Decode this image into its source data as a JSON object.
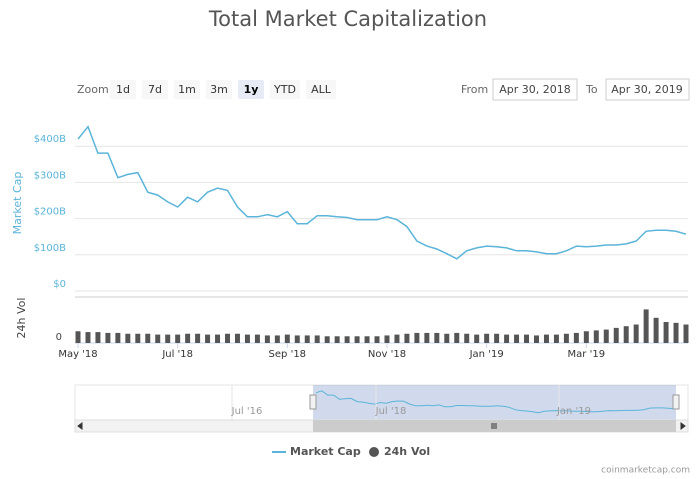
{
  "chart_data": {
    "type": "line",
    "title": "Total Market Capitalization",
    "categories": [
      "May '18",
      null,
      null,
      null,
      null,
      null,
      null,
      null,
      null,
      null,
      "Jul '18",
      null,
      null,
      null,
      null,
      null,
      null,
      null,
      null,
      null,
      null,
      "Sep '18",
      null,
      null,
      null,
      null,
      null,
      null,
      null,
      null,
      null,
      "Nov '18",
      null,
      null,
      null,
      null,
      null,
      null,
      null,
      null,
      null,
      "Jan '19",
      null,
      null,
      null,
      null,
      null,
      null,
      null,
      null,
      null,
      "Mar '19",
      null,
      null,
      null,
      null,
      null,
      null,
      null,
      null,
      null,
      null
    ],
    "series": [
      {
        "name": "Market Cap",
        "color": "#5bb4d9",
        "values": [
          420,
          454,
          381,
          381,
          313,
          322,
          327,
          273,
          265,
          246,
          232,
          259,
          246,
          273,
          284,
          278,
          232,
          205,
          205,
          211,
          205,
          219,
          186,
          186,
          208,
          208,
          205,
          203,
          197,
          197,
          197,
          205,
          197,
          178,
          138,
          124,
          116,
          103,
          89,
          111,
          119,
          124,
          122,
          119,
          111,
          111,
          108,
          103,
          103,
          111,
          124,
          122,
          124,
          127,
          127,
          130,
          138,
          165,
          168,
          168,
          165,
          157
        ]
      },
      {
        "name": "24h Vol",
        "color": "#555555",
        "type": "column",
        "values": [
          14,
          13,
          13,
          12,
          12,
          11,
          11,
          11,
          10,
          10,
          10,
          11,
          11,
          10,
          10,
          11,
          11,
          10,
          10,
          9,
          9,
          10,
          9,
          9,
          9,
          8,
          8,
          8,
          8,
          8,
          8,
          9,
          10,
          11,
          12,
          12,
          12,
          11,
          12,
          11,
          10,
          11,
          11,
          10,
          10,
          10,
          9,
          10,
          10,
          11,
          12,
          14,
          15,
          16,
          18,
          20,
          22,
          40,
          30,
          25,
          24,
          22
        ]
      }
    ],
    "yaxis_title": "Market Cap",
    "ylim": [
      0,
      500
    ],
    "yticks": [
      {
        "value": 0,
        "label": "$0"
      },
      {
        "value": 100,
        "label": "$100B"
      },
      {
        "value": 200,
        "label": "$200B"
      },
      {
        "value": 300,
        "label": "$300B"
      },
      {
        "value": 400,
        "label": "$400B"
      }
    ],
    "vol_axis_title": "24h Vol",
    "vol_ylim": [
      0,
      50
    ],
    "vol_yticks": [
      0
    ],
    "grid": true,
    "legend": "bottom",
    "credits": "coinmarketcap.com"
  },
  "toolbar": {
    "zoom_label": "Zoom",
    "buttons": [
      "1d",
      "7d",
      "1m",
      "3m",
      "1y",
      "YTD",
      "ALL"
    ],
    "selected": "1y",
    "from_label": "From",
    "from_value": "Apr 30, 2018",
    "to_label": "To",
    "to_value": "Apr 30, 2019"
  },
  "navigator": {
    "labels": [
      "Jul '16",
      "Jul '18",
      "Jan '19"
    ]
  }
}
